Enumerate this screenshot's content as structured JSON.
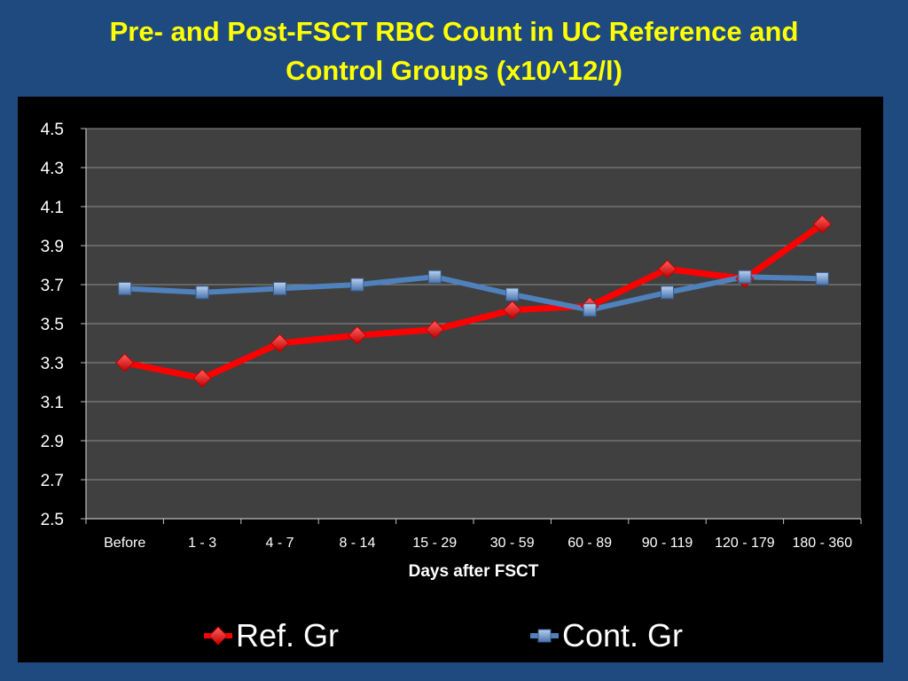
{
  "slide": {
    "title_line1": "Pre- and Post-FSCT RBC Count in UC Reference and",
    "title_line2": "Control Groups  (x10^12/l)"
  },
  "chart_data": {
    "type": "line",
    "title": "Pre- and Post-FSCT RBC Count in UC Reference and Control Groups  (x10^12/l)",
    "xlabel": "Days after FSCT",
    "ylabel": "",
    "categories": [
      "Before",
      "1 - 3",
      "4 - 7",
      "8 - 14",
      "15 - 29",
      "30 - 59",
      "60 - 89",
      "90 - 119",
      "120 - 179",
      "180 - 360"
    ],
    "ylim": [
      2.5,
      4.5
    ],
    "yticks": [
      "2.5",
      "2.7",
      "2.9",
      "3.1",
      "3.3",
      "3.5",
      "3.7",
      "3.9",
      "4.1",
      "4.3",
      "4.5"
    ],
    "grid": true,
    "legend_position": "bottom",
    "series": [
      {
        "name": "Ref. Gr",
        "color": "#ff0000",
        "marker": "diamond",
        "values": [
          3.3,
          3.22,
          3.4,
          3.44,
          3.47,
          3.57,
          3.59,
          3.78,
          3.73,
          4.01
        ]
      },
      {
        "name": "Cont. Gr",
        "color": "#4f81bd",
        "marker": "square",
        "values": [
          3.68,
          3.66,
          3.68,
          3.7,
          3.74,
          3.65,
          3.57,
          3.66,
          3.74,
          3.73
        ]
      }
    ]
  }
}
